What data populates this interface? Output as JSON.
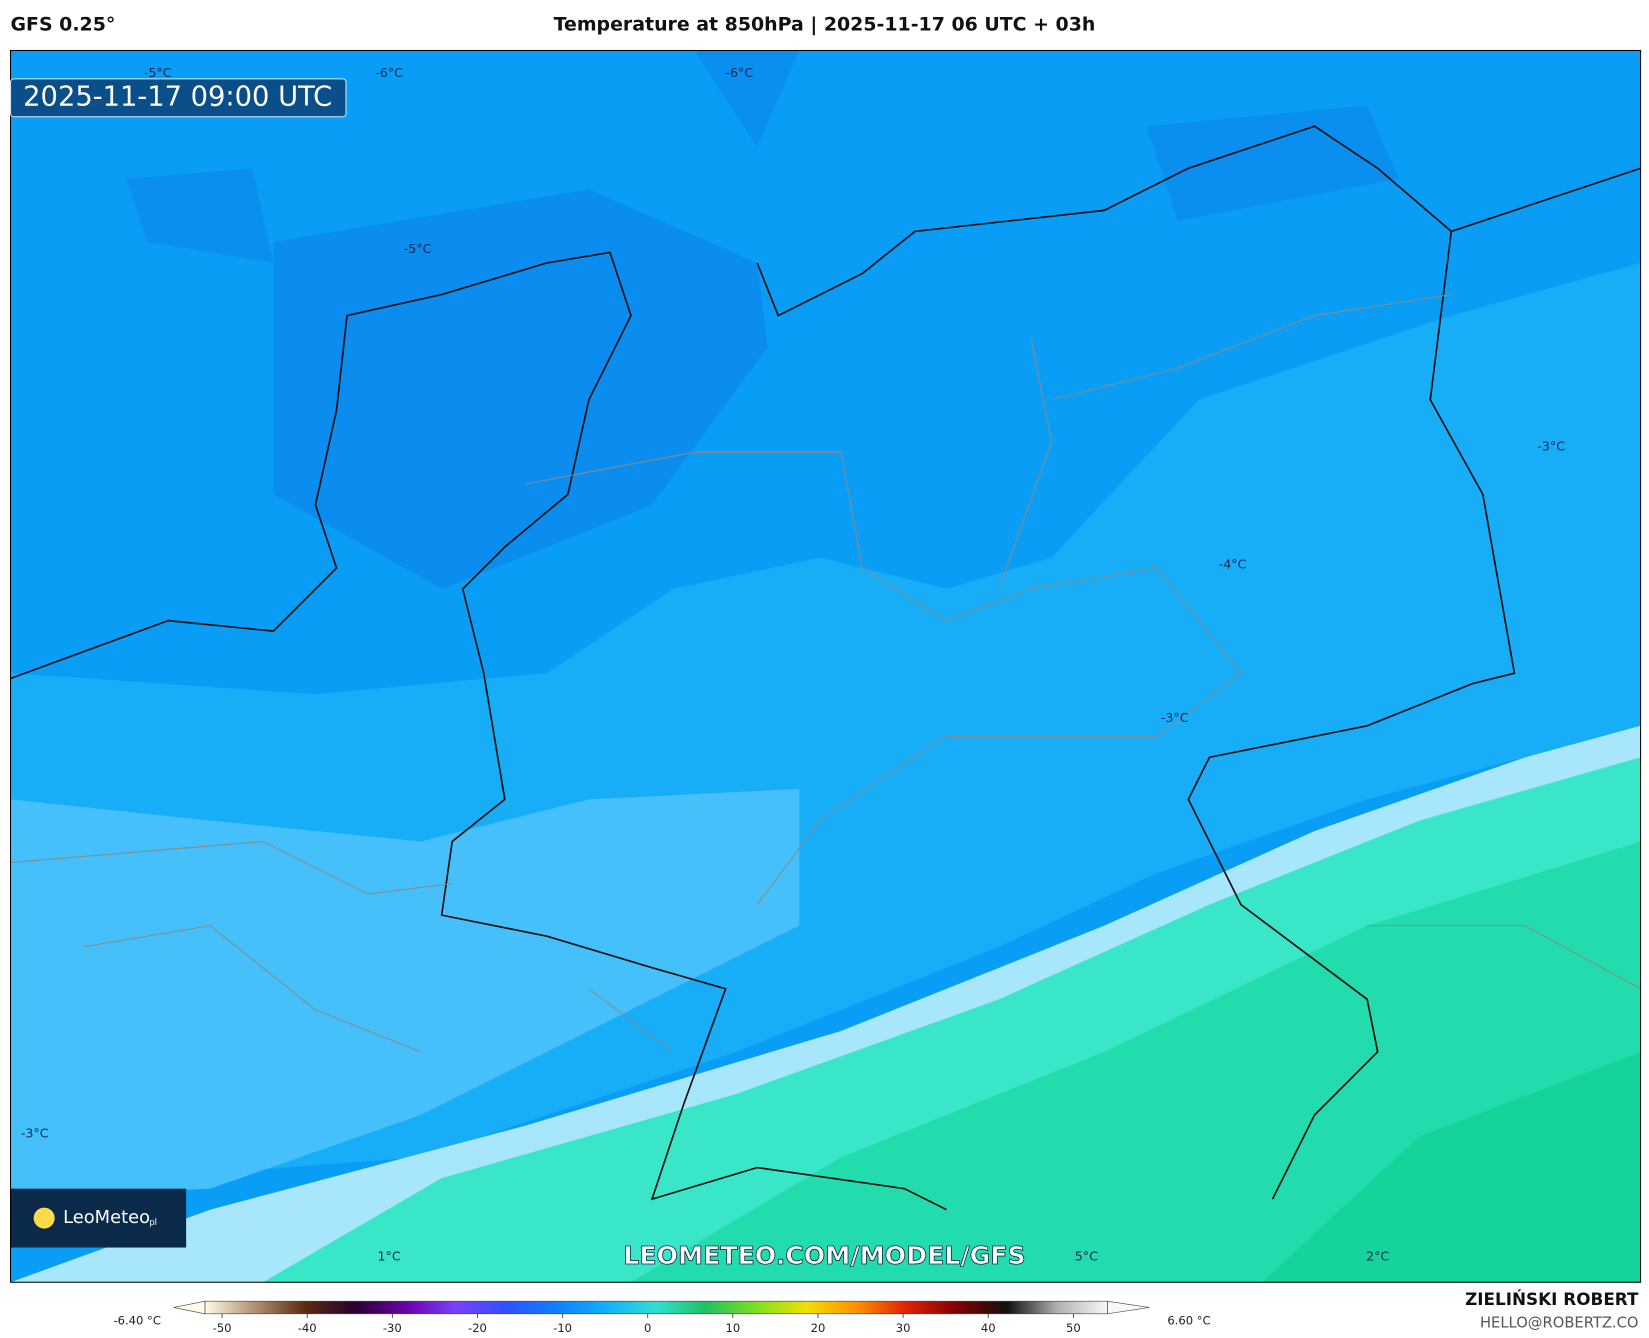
{
  "header": {
    "model": "GFS 0.25°",
    "title": "Temperature at 850hPa | 2025-11-17 06 UTC + 03h"
  },
  "map": {
    "valid_time": "2025-11-17 09:00 UTC",
    "contour_labels": [
      "-5°C",
      "-6°C",
      "-6°C",
      "-5°C",
      "-3°C",
      "-3°C",
      "-4°C",
      "-3°C",
      "1°C",
      "5°C",
      "2°C"
    ],
    "watermark": "LEOMETEO.COM/MODEL/GFS",
    "logo": {
      "name": "LeoMeteo",
      "suffix": "pl"
    }
  },
  "colorbar": {
    "min_label": "-6.40 °C",
    "max_label": "6.60 °C",
    "lim": [
      -52,
      54
    ],
    "ticks": [
      -50,
      -40,
      -30,
      -20,
      -10,
      0,
      10,
      20,
      30,
      40,
      50
    ],
    "colors": [
      "#fffbe8",
      "#b09070",
      "#5a2a10",
      "#2a0030",
      "#6a00a8",
      "#7a40ff",
      "#3050ff",
      "#1080ff",
      "#10b0ff",
      "#30e0d0",
      "#20c060",
      "#80e020",
      "#f0e000",
      "#ff9000",
      "#e02000",
      "#800000",
      "#101010",
      "#b0b0b0",
      "#f8f8f8"
    ]
  },
  "footer": {
    "author": "ZIELIŃSKI ROBERT",
    "contact": "HELLO@ROBERTZ.CO"
  }
}
